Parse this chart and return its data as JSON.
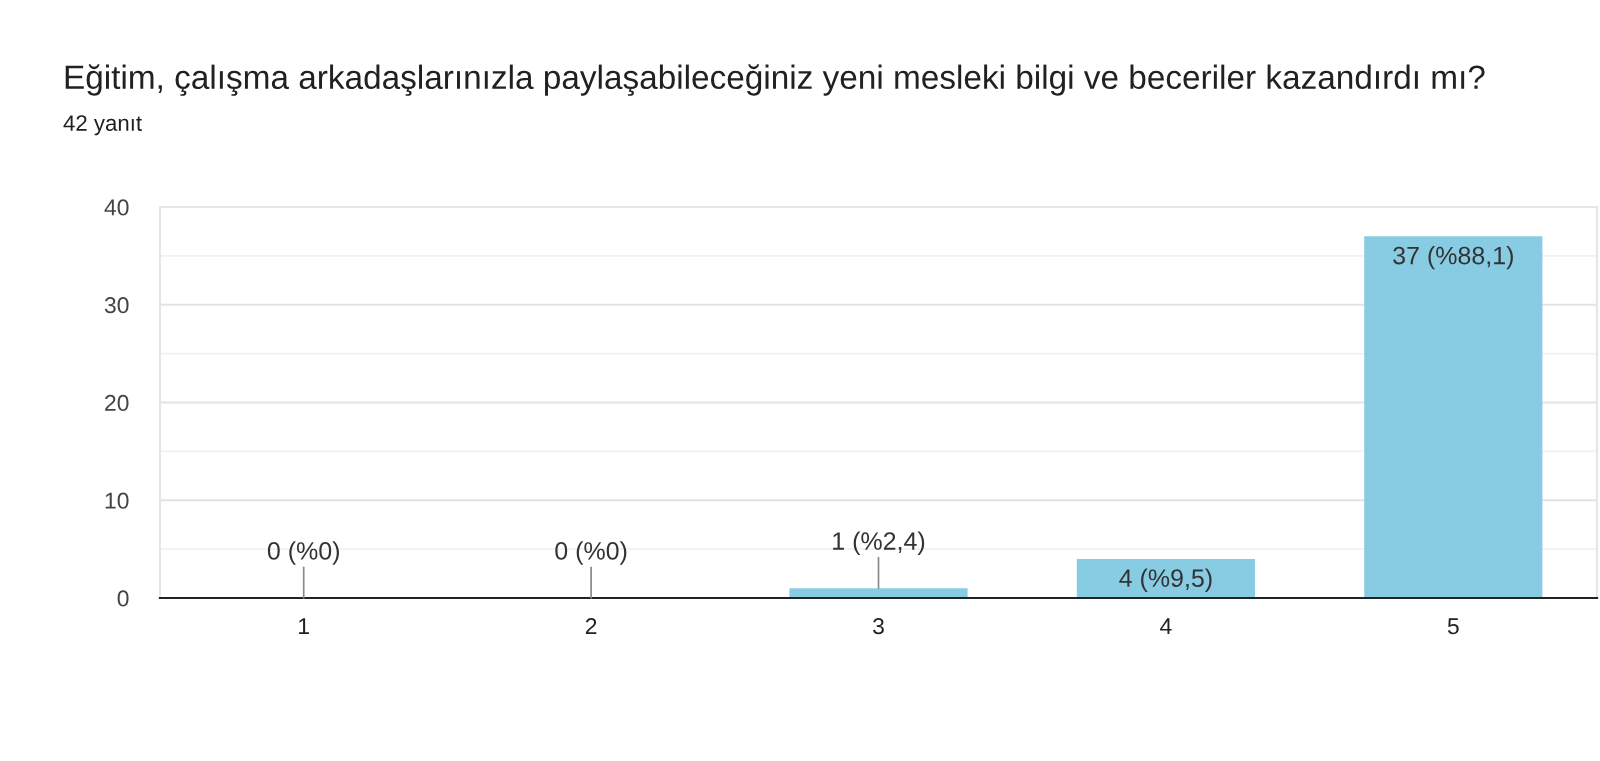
{
  "chart_data": {
    "type": "bar",
    "title": "Eğitim, çalışma arkadaşlarınızla paylaşabileceğiniz yeni mesleki bilgi ve beceriler kazandırdı mı?",
    "subtitle": "42 yanıt",
    "categories": [
      "1",
      "2",
      "3",
      "4",
      "5"
    ],
    "values": [
      0,
      0,
      1,
      4,
      37
    ],
    "value_labels": [
      "0 (%0)",
      "0 (%0)",
      "1 (%2,4)",
      "4 (%9,5)",
      "37 (%88,1)"
    ],
    "color": "#88cce3",
    "ylim": [
      0,
      40
    ],
    "yticks": [
      0,
      {
        "value": 5,
        "label": null
      },
      10,
      {
        "value": 15,
        "label": null
      },
      20,
      {
        "value": 25,
        "label": null
      },
      30,
      {
        "value": 35,
        "label": null
      },
      40
    ],
    "grid": "y"
  }
}
